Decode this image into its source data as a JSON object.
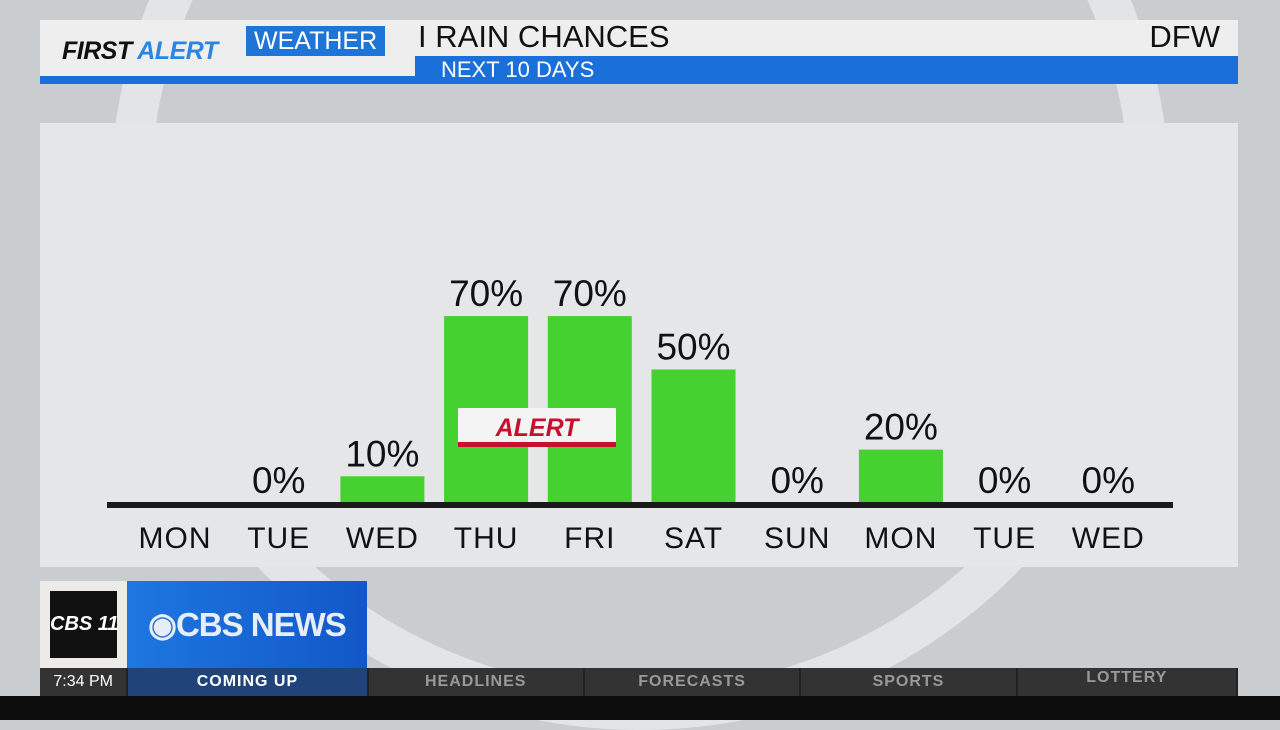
{
  "header": {
    "brand_first": "FIRST",
    "brand_alert": "ALERT",
    "brand_weather": "WEATHER",
    "separator": "I",
    "title": "RAIN CHANCES",
    "subtitle": "NEXT 10 DAYS",
    "location": "DFW"
  },
  "chart_data": {
    "type": "bar",
    "title": "RAIN CHANCES",
    "subtitle": "NEXT 10 DAYS",
    "categories": [
      "MON",
      "TUE",
      "WED",
      "THU",
      "FRI",
      "SAT",
      "SUN",
      "MON",
      "TUE",
      "WED"
    ],
    "values": [
      null,
      0,
      10,
      70,
      70,
      50,
      0,
      20,
      0,
      0
    ],
    "labels": [
      "",
      "0%",
      "10%",
      "70%",
      "70%",
      "50%",
      "0%",
      "20%",
      "0%",
      "0%"
    ],
    "unit": "%",
    "ylim": [
      0,
      100
    ],
    "grid": false,
    "bar_color": "#45d12f",
    "annotation": {
      "text": "ALERT",
      "spans": [
        "THU",
        "FRI"
      ],
      "color": "#c8102e"
    }
  },
  "branding": {
    "station_logo": "CBS 11",
    "network": "CBS NEWS"
  },
  "ticker": {
    "time": "7:34 PM",
    "items": [
      "COMING UP",
      "HEADLINES",
      "FORECASTS",
      "SPORTS",
      "LOTTERY"
    ],
    "active": "COMING UP"
  }
}
